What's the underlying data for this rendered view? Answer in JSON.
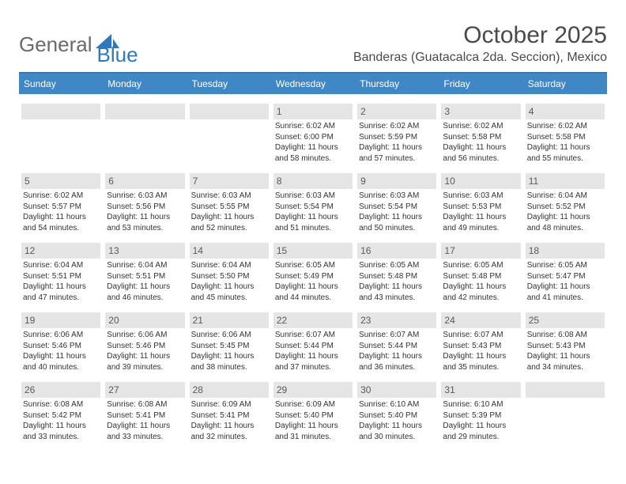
{
  "logo": {
    "text1": "General",
    "text2": "Blue"
  },
  "title": "October 2025",
  "subtitle": "Banderas (Guatacalca 2da. Seccion), Mexico",
  "colors": {
    "header_bar": "#3f88c5",
    "divider": "#2f78bd",
    "day_bar": "#e5e5e5",
    "text": "#333333",
    "muted": "#6a6a6a"
  },
  "weekdays": [
    "Sunday",
    "Monday",
    "Tuesday",
    "Wednesday",
    "Thursday",
    "Friday",
    "Saturday"
  ],
  "weeks": [
    [
      {
        "num": "",
        "lines": []
      },
      {
        "num": "",
        "lines": []
      },
      {
        "num": "",
        "lines": []
      },
      {
        "num": "1",
        "lines": [
          "Sunrise: 6:02 AM",
          "Sunset: 6:00 PM",
          "Daylight: 11 hours",
          "and 58 minutes."
        ]
      },
      {
        "num": "2",
        "lines": [
          "Sunrise: 6:02 AM",
          "Sunset: 5:59 PM",
          "Daylight: 11 hours",
          "and 57 minutes."
        ]
      },
      {
        "num": "3",
        "lines": [
          "Sunrise: 6:02 AM",
          "Sunset: 5:58 PM",
          "Daylight: 11 hours",
          "and 56 minutes."
        ]
      },
      {
        "num": "4",
        "lines": [
          "Sunrise: 6:02 AM",
          "Sunset: 5:58 PM",
          "Daylight: 11 hours",
          "and 55 minutes."
        ]
      }
    ],
    [
      {
        "num": "5",
        "lines": [
          "Sunrise: 6:02 AM",
          "Sunset: 5:57 PM",
          "Daylight: 11 hours",
          "and 54 minutes."
        ]
      },
      {
        "num": "6",
        "lines": [
          "Sunrise: 6:03 AM",
          "Sunset: 5:56 PM",
          "Daylight: 11 hours",
          "and 53 minutes."
        ]
      },
      {
        "num": "7",
        "lines": [
          "Sunrise: 6:03 AM",
          "Sunset: 5:55 PM",
          "Daylight: 11 hours",
          "and 52 minutes."
        ]
      },
      {
        "num": "8",
        "lines": [
          "Sunrise: 6:03 AM",
          "Sunset: 5:54 PM",
          "Daylight: 11 hours",
          "and 51 minutes."
        ]
      },
      {
        "num": "9",
        "lines": [
          "Sunrise: 6:03 AM",
          "Sunset: 5:54 PM",
          "Daylight: 11 hours",
          "and 50 minutes."
        ]
      },
      {
        "num": "10",
        "lines": [
          "Sunrise: 6:03 AM",
          "Sunset: 5:53 PM",
          "Daylight: 11 hours",
          "and 49 minutes."
        ]
      },
      {
        "num": "11",
        "lines": [
          "Sunrise: 6:04 AM",
          "Sunset: 5:52 PM",
          "Daylight: 11 hours",
          "and 48 minutes."
        ]
      }
    ],
    [
      {
        "num": "12",
        "lines": [
          "Sunrise: 6:04 AM",
          "Sunset: 5:51 PM",
          "Daylight: 11 hours",
          "and 47 minutes."
        ]
      },
      {
        "num": "13",
        "lines": [
          "Sunrise: 6:04 AM",
          "Sunset: 5:51 PM",
          "Daylight: 11 hours",
          "and 46 minutes."
        ]
      },
      {
        "num": "14",
        "lines": [
          "Sunrise: 6:04 AM",
          "Sunset: 5:50 PM",
          "Daylight: 11 hours",
          "and 45 minutes."
        ]
      },
      {
        "num": "15",
        "lines": [
          "Sunrise: 6:05 AM",
          "Sunset: 5:49 PM",
          "Daylight: 11 hours",
          "and 44 minutes."
        ]
      },
      {
        "num": "16",
        "lines": [
          "Sunrise: 6:05 AM",
          "Sunset: 5:48 PM",
          "Daylight: 11 hours",
          "and 43 minutes."
        ]
      },
      {
        "num": "17",
        "lines": [
          "Sunrise: 6:05 AM",
          "Sunset: 5:48 PM",
          "Daylight: 11 hours",
          "and 42 minutes."
        ]
      },
      {
        "num": "18",
        "lines": [
          "Sunrise: 6:05 AM",
          "Sunset: 5:47 PM",
          "Daylight: 11 hours",
          "and 41 minutes."
        ]
      }
    ],
    [
      {
        "num": "19",
        "lines": [
          "Sunrise: 6:06 AM",
          "Sunset: 5:46 PM",
          "Daylight: 11 hours",
          "and 40 minutes."
        ]
      },
      {
        "num": "20",
        "lines": [
          "Sunrise: 6:06 AM",
          "Sunset: 5:46 PM",
          "Daylight: 11 hours",
          "and 39 minutes."
        ]
      },
      {
        "num": "21",
        "lines": [
          "Sunrise: 6:06 AM",
          "Sunset: 5:45 PM",
          "Daylight: 11 hours",
          "and 38 minutes."
        ]
      },
      {
        "num": "22",
        "lines": [
          "Sunrise: 6:07 AM",
          "Sunset: 5:44 PM",
          "Daylight: 11 hours",
          "and 37 minutes."
        ]
      },
      {
        "num": "23",
        "lines": [
          "Sunrise: 6:07 AM",
          "Sunset: 5:44 PM",
          "Daylight: 11 hours",
          "and 36 minutes."
        ]
      },
      {
        "num": "24",
        "lines": [
          "Sunrise: 6:07 AM",
          "Sunset: 5:43 PM",
          "Daylight: 11 hours",
          "and 35 minutes."
        ]
      },
      {
        "num": "25",
        "lines": [
          "Sunrise: 6:08 AM",
          "Sunset: 5:43 PM",
          "Daylight: 11 hours",
          "and 34 minutes."
        ]
      }
    ],
    [
      {
        "num": "26",
        "lines": [
          "Sunrise: 6:08 AM",
          "Sunset: 5:42 PM",
          "Daylight: 11 hours",
          "and 33 minutes."
        ]
      },
      {
        "num": "27",
        "lines": [
          "Sunrise: 6:08 AM",
          "Sunset: 5:41 PM",
          "Daylight: 11 hours",
          "and 33 minutes."
        ]
      },
      {
        "num": "28",
        "lines": [
          "Sunrise: 6:09 AM",
          "Sunset: 5:41 PM",
          "Daylight: 11 hours",
          "and 32 minutes."
        ]
      },
      {
        "num": "29",
        "lines": [
          "Sunrise: 6:09 AM",
          "Sunset: 5:40 PM",
          "Daylight: 11 hours",
          "and 31 minutes."
        ]
      },
      {
        "num": "30",
        "lines": [
          "Sunrise: 6:10 AM",
          "Sunset: 5:40 PM",
          "Daylight: 11 hours",
          "and 30 minutes."
        ]
      },
      {
        "num": "31",
        "lines": [
          "Sunrise: 6:10 AM",
          "Sunset: 5:39 PM",
          "Daylight: 11 hours",
          "and 29 minutes."
        ]
      },
      {
        "num": "",
        "lines": []
      }
    ]
  ]
}
